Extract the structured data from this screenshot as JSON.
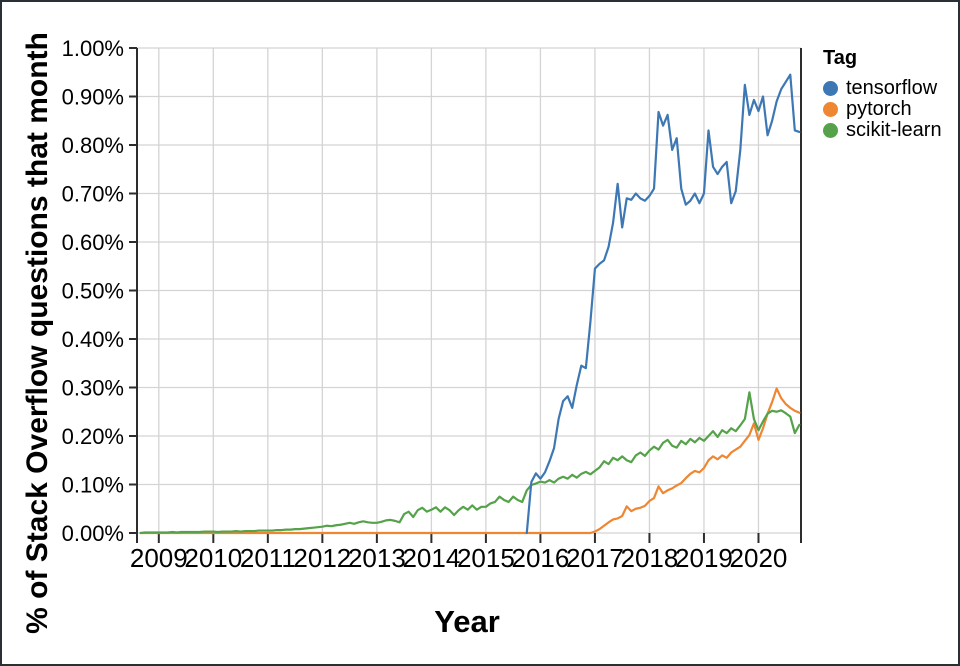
{
  "chart_data": {
    "type": "line",
    "title": "",
    "xlabel": "Year",
    "ylabel": "% of Stack Overflow questions that month",
    "legend_title": "Tag",
    "legend_position": "right-top",
    "grid": true,
    "ylim": [
      0,
      1.0
    ],
    "x_domain_years": [
      2008.6,
      2020.78
    ],
    "x_ticks": [
      2009,
      2010,
      2011,
      2012,
      2013,
      2014,
      2015,
      2016,
      2017,
      2018,
      2019,
      2020
    ],
    "x_tick_labels": [
      "2009",
      "2010",
      "2011",
      "2012",
      "2013",
      "2014",
      "2015",
      "2016",
      "2017",
      "2018",
      "2019",
      "2020"
    ],
    "y_ticks": [
      0,
      0.1,
      0.2,
      0.3,
      0.4,
      0.5,
      0.6,
      0.7,
      0.8,
      0.9,
      1.0
    ],
    "y_tick_labels": [
      "0.00%",
      "0.10%",
      "0.20%",
      "0.30%",
      "0.40%",
      "0.50%",
      "0.60%",
      "0.70%",
      "0.80%",
      "0.90%",
      "1.00%"
    ],
    "x_unit": "monthly, start = series start month",
    "y_unit": "percent of Stack Overflow questions that month",
    "series": [
      {
        "name": "tensorflow",
        "color": "#3d78b4",
        "start": "2015-10",
        "values": [
          0.0,
          0.105,
          0.123,
          0.112,
          0.125,
          0.148,
          0.175,
          0.235,
          0.272,
          0.282,
          0.258,
          0.305,
          0.345,
          0.34,
          0.435,
          0.545,
          0.555,
          0.562,
          0.59,
          0.64,
          0.72,
          0.63,
          0.69,
          0.687,
          0.7,
          0.69,
          0.685,
          0.695,
          0.71,
          0.868,
          0.84,
          0.862,
          0.79,
          0.814,
          0.71,
          0.677,
          0.685,
          0.7,
          0.68,
          0.7,
          0.83,
          0.755,
          0.74,
          0.755,
          0.765,
          0.68,
          0.705,
          0.79,
          0.924,
          0.862,
          0.893,
          0.87,
          0.9,
          0.82,
          0.85,
          0.89,
          0.915,
          0.93,
          0.945,
          0.83,
          0.827
        ]
      },
      {
        "name": "pytorch",
        "color": "#ee8632",
        "start": "2008-09",
        "values": [
          0,
          0,
          0,
          0,
          0,
          0,
          0,
          0,
          0,
          0,
          0,
          0,
          0,
          0,
          0,
          0,
          0,
          0,
          0,
          0,
          0,
          0,
          0,
          0,
          0,
          0,
          0,
          0,
          0,
          0,
          0,
          0,
          0,
          0,
          0,
          0,
          0,
          0,
          0,
          0,
          0,
          0,
          0,
          0,
          0,
          0,
          0,
          0,
          0,
          0,
          0,
          0,
          0,
          0,
          0,
          0,
          0,
          0,
          0,
          0,
          0,
          0,
          0,
          0,
          0,
          0,
          0,
          0,
          0,
          0,
          0,
          0,
          0,
          0,
          0,
          0,
          0,
          0,
          0,
          0,
          0,
          0,
          0,
          0,
          0,
          0,
          0,
          0,
          0,
          0,
          0,
          0,
          0,
          0,
          0,
          0,
          0,
          0,
          0,
          0,
          0.003,
          0.008,
          0.015,
          0.022,
          0.028,
          0.03,
          0.035,
          0.055,
          0.045,
          0.05,
          0.052,
          0.056,
          0.066,
          0.072,
          0.096,
          0.082,
          0.088,
          0.092,
          0.098,
          0.103,
          0.113,
          0.122,
          0.128,
          0.125,
          0.134,
          0.15,
          0.158,
          0.152,
          0.16,
          0.155,
          0.166,
          0.172,
          0.178,
          0.19,
          0.202,
          0.226,
          0.192,
          0.216,
          0.246,
          0.27,
          0.298,
          0.278,
          0.266,
          0.258,
          0.252,
          0.248
        ]
      },
      {
        "name": "scikit-learn",
        "color": "#55a24a",
        "start": "2008-09",
        "values": [
          0.0,
          0.001,
          0.001,
          0.001,
          0.001,
          0.001,
          0.001,
          0.002,
          0.001,
          0.002,
          0.002,
          0.002,
          0.002,
          0.002,
          0.003,
          0.003,
          0.003,
          0.002,
          0.003,
          0.003,
          0.003,
          0.004,
          0.003,
          0.004,
          0.004,
          0.004,
          0.005,
          0.005,
          0.005,
          0.005,
          0.006,
          0.006,
          0.007,
          0.007,
          0.008,
          0.008,
          0.009,
          0.01,
          0.011,
          0.012,
          0.013,
          0.015,
          0.014,
          0.016,
          0.017,
          0.019,
          0.021,
          0.019,
          0.022,
          0.024,
          0.022,
          0.021,
          0.021,
          0.023,
          0.026,
          0.027,
          0.025,
          0.022,
          0.039,
          0.044,
          0.033,
          0.047,
          0.052,
          0.044,
          0.048,
          0.053,
          0.044,
          0.053,
          0.047,
          0.037,
          0.047,
          0.054,
          0.048,
          0.057,
          0.048,
          0.054,
          0.054,
          0.061,
          0.064,
          0.075,
          0.068,
          0.064,
          0.075,
          0.068,
          0.064,
          0.088,
          0.099,
          0.102,
          0.106,
          0.104,
          0.109,
          0.104,
          0.112,
          0.116,
          0.112,
          0.12,
          0.114,
          0.122,
          0.126,
          0.121,
          0.128,
          0.135,
          0.148,
          0.142,
          0.155,
          0.15,
          0.158,
          0.15,
          0.146,
          0.16,
          0.166,
          0.159,
          0.17,
          0.178,
          0.172,
          0.186,
          0.192,
          0.18,
          0.176,
          0.19,
          0.183,
          0.194,
          0.187,
          0.196,
          0.19,
          0.2,
          0.21,
          0.198,
          0.212,
          0.206,
          0.216,
          0.21,
          0.222,
          0.235,
          0.29,
          0.235,
          0.212,
          0.23,
          0.246,
          0.252,
          0.25,
          0.253,
          0.247,
          0.24,
          0.206,
          0.223
        ]
      }
    ]
  },
  "style": {
    "grid_color": "#d4d4d4",
    "axis_color": "#2d2d2d",
    "text_color": "#000000",
    "background": "#ffffff"
  }
}
